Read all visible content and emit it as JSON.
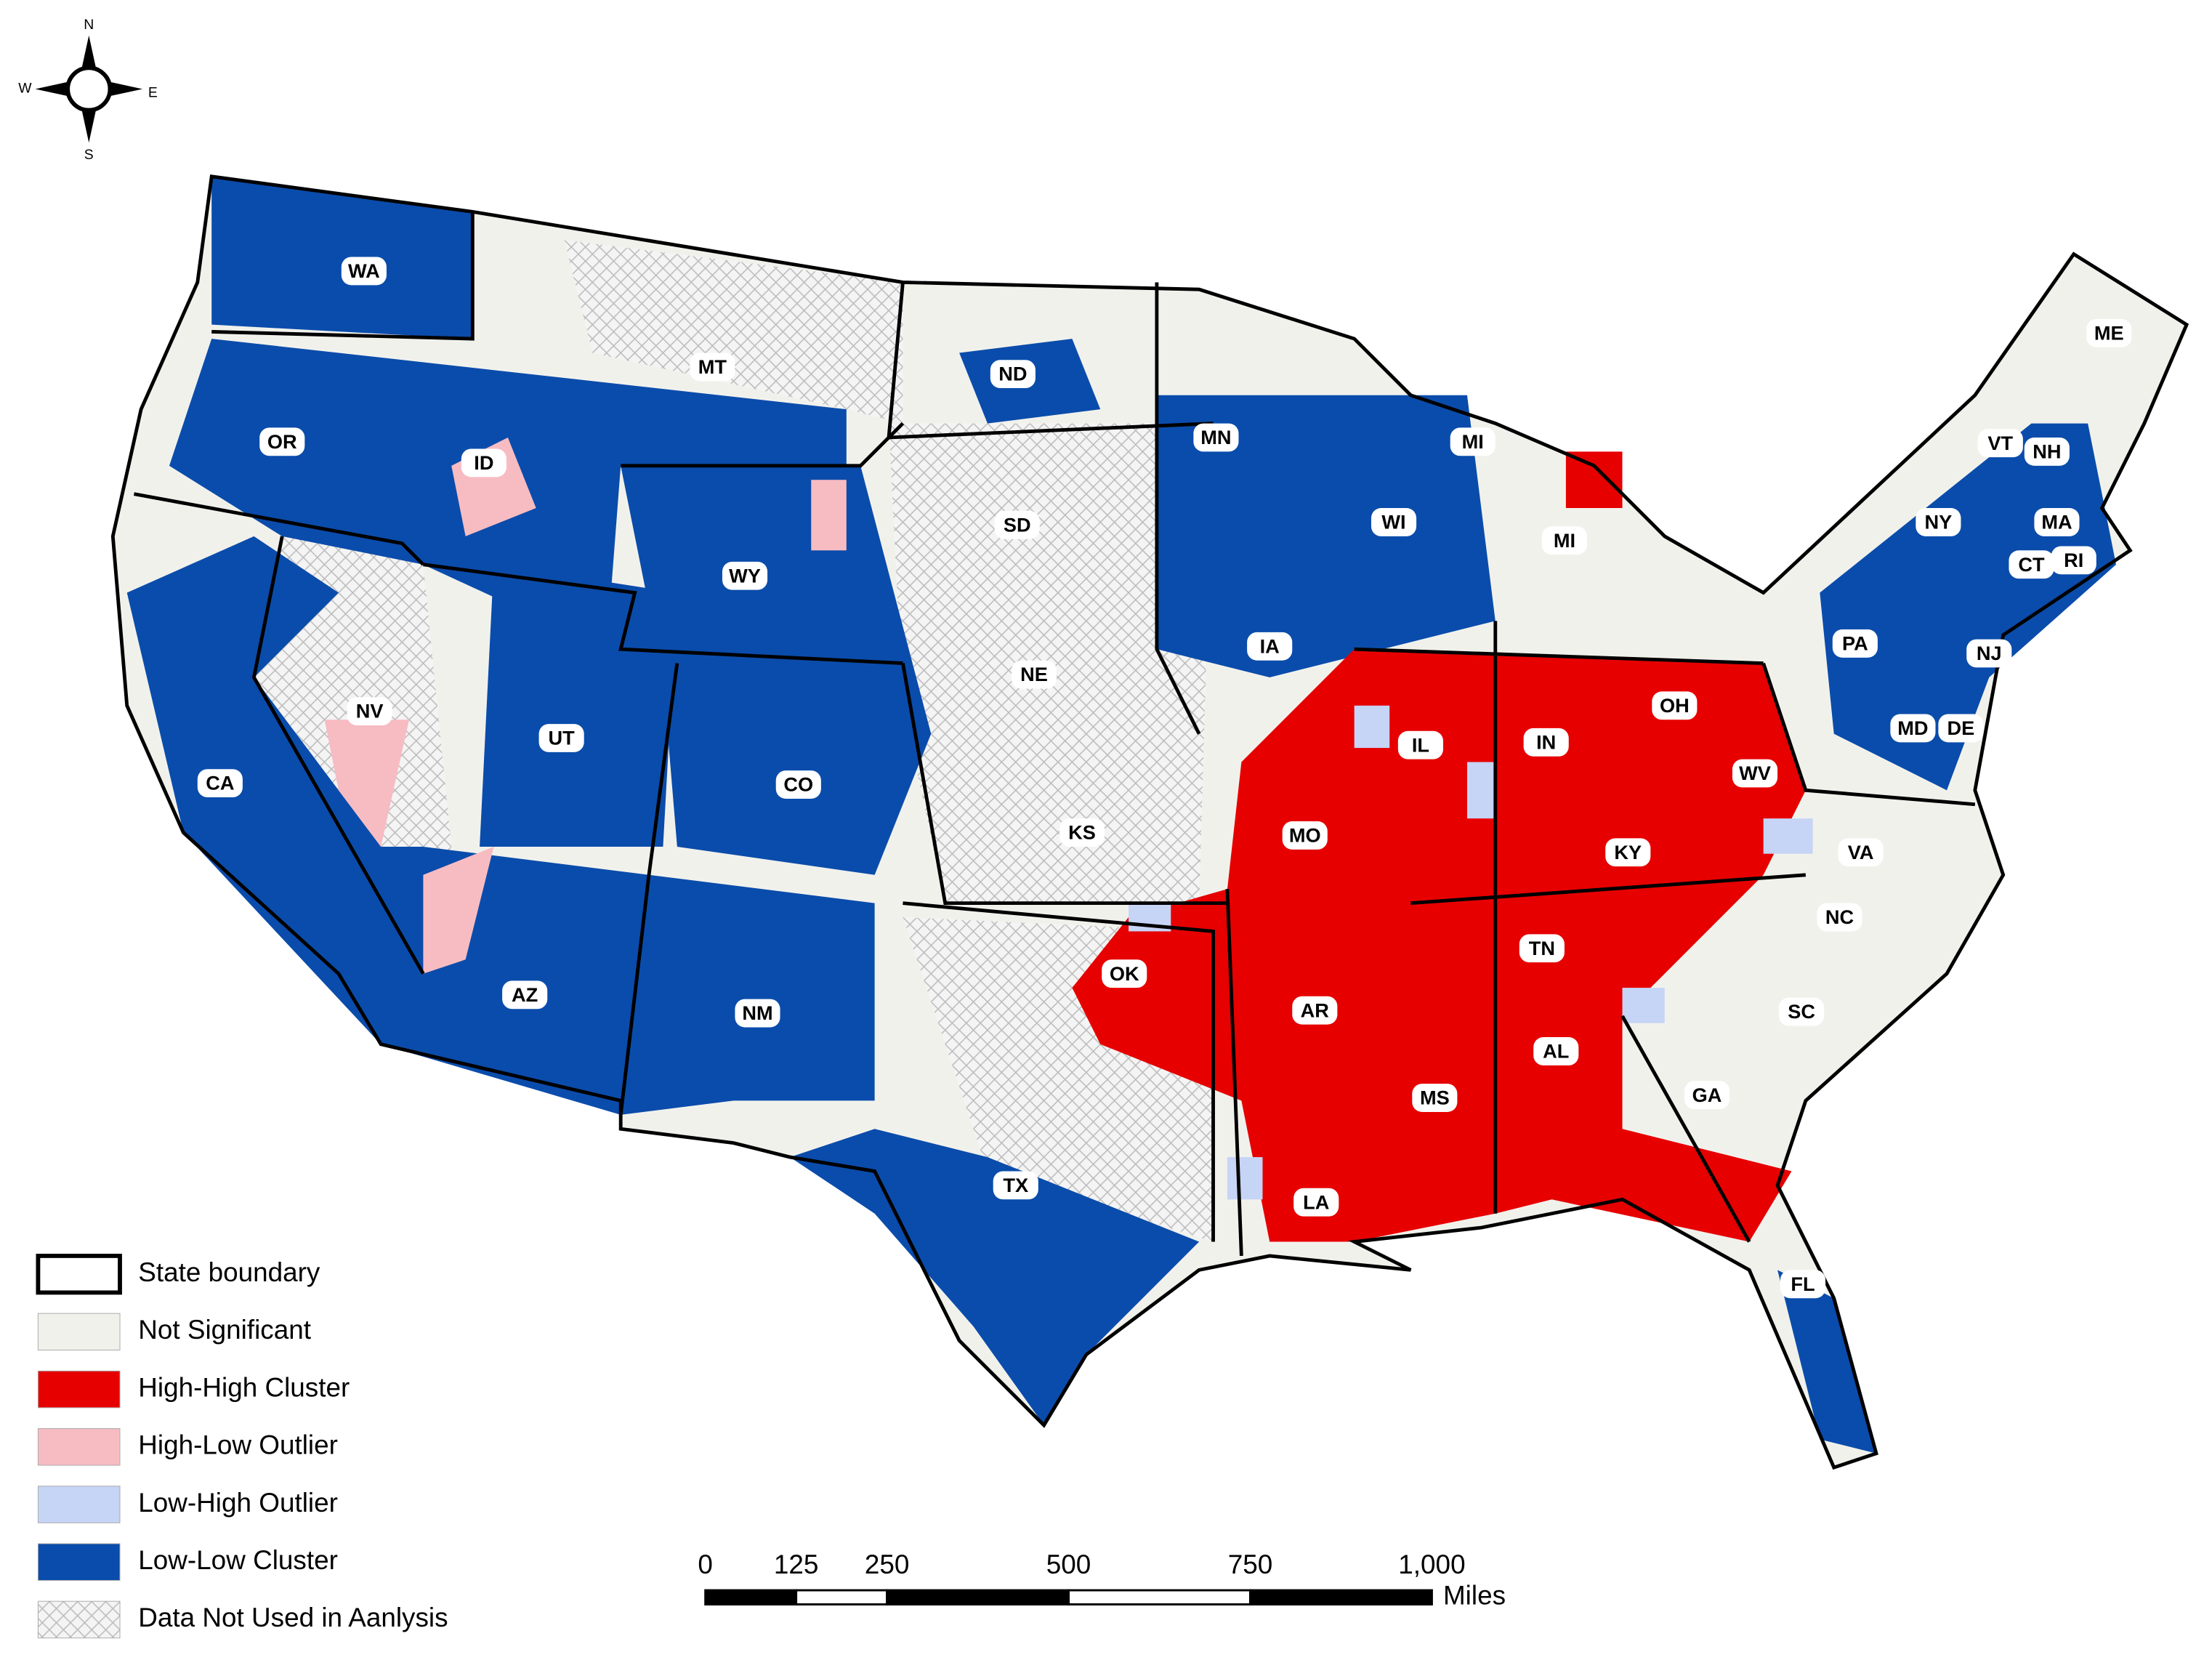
{
  "compass": {
    "north": "N",
    "east": "E",
    "south": "S",
    "west": "W"
  },
  "states": [
    "WA",
    "OR",
    "ID",
    "MT",
    "ND",
    "SD",
    "WY",
    "NV",
    "UT",
    "CO",
    "CA",
    "AZ",
    "NM",
    "NE",
    "KS",
    "OK",
    "TX",
    "MN",
    "IA",
    "MO",
    "AR",
    "LA",
    "WI",
    "IL",
    "MS",
    "MI",
    "MI",
    "IN",
    "KY",
    "TN",
    "AL",
    "OH",
    "WV",
    "GA",
    "FL",
    "VA",
    "NC",
    "SC",
    "PA",
    "NY",
    "VT",
    "NH",
    "MA",
    "CT",
    "RI",
    "NJ",
    "MD",
    "DE",
    "ME"
  ],
  "legend": [
    {
      "label": "State boundary",
      "color": "#ffffff"
    },
    {
      "label": "Not Significant",
      "color": "#f1f1ec"
    },
    {
      "label": "High-High Cluster",
      "color": "#e60000"
    },
    {
      "label": "High-Low Outlier",
      "color": "#f7bcc2"
    },
    {
      "label": "Low-High Outlier",
      "color": "#c6d4f6"
    },
    {
      "label": "Low-Low Cluster",
      "color": "#0a4cab"
    },
    {
      "label": "Data Not Used in Aanlysis",
      "color": "#f4f4f4"
    }
  ],
  "scale": {
    "ticks": [
      0,
      125,
      250,
      500,
      750,
      {
        "value": 1000,
        "label": "1,000"
      }
    ],
    "unit": "Miles"
  }
}
